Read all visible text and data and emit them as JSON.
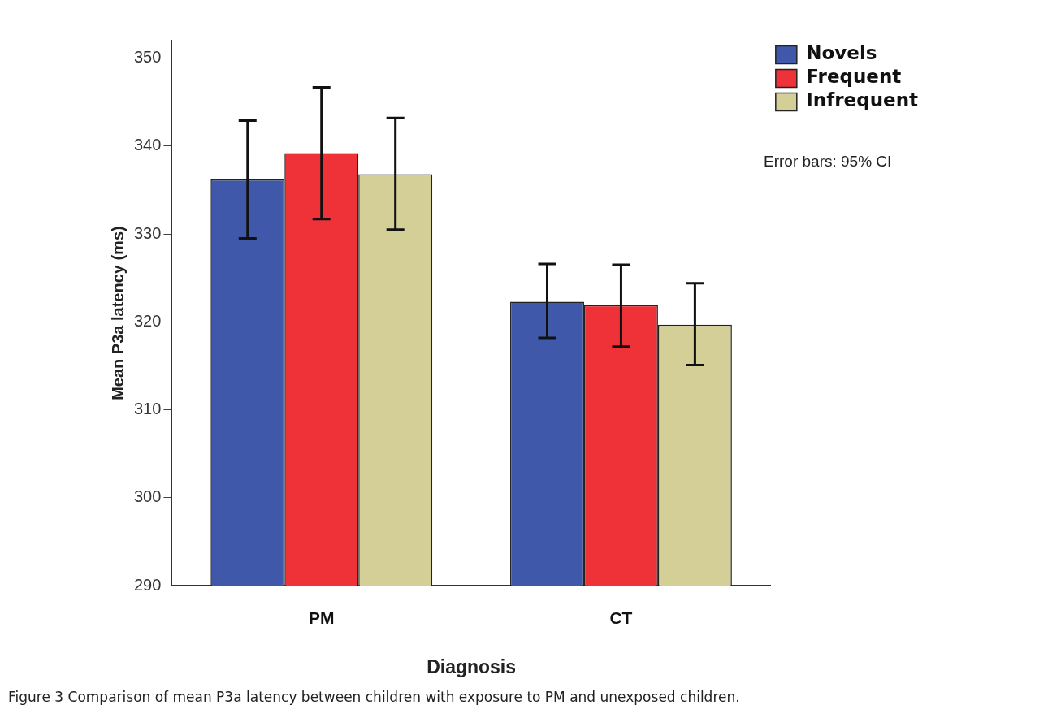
{
  "chart_data": {
    "type": "bar",
    "xlabel": "Diagnosis",
    "ylabel": "Mean P3a latency (ms)",
    "categories": [
      "PM",
      "CT"
    ],
    "series": [
      {
        "name": "Novels",
        "color": "#3f58a9",
        "values": [
          336.2,
          322.3
        ],
        "errors": [
          [
            329.5,
            342.9
          ],
          [
            318.2,
            326.6
          ]
        ]
      },
      {
        "name": "Frequent",
        "color": "#ef3138",
        "values": [
          339.2,
          321.9
        ],
        "errors": [
          [
            331.7,
            346.7
          ],
          [
            317.2,
            326.5
          ]
        ]
      },
      {
        "name": "Infrequent",
        "color": "#d3cf97",
        "values": [
          336.8,
          319.7
        ],
        "errors": [
          [
            330.5,
            343.2
          ],
          [
            315.1,
            324.4
          ]
        ]
      }
    ],
    "ylim": [
      290,
      352
    ],
    "yticks": [
      290,
      300,
      310,
      320,
      330,
      340,
      350
    ],
    "grid": false,
    "legend": "top right",
    "annotations": [
      "Error bars: 95% CI",
      "Figure 3 Comparison of mean P3a latency between children with exposure to PM and unexposed children."
    ]
  }
}
